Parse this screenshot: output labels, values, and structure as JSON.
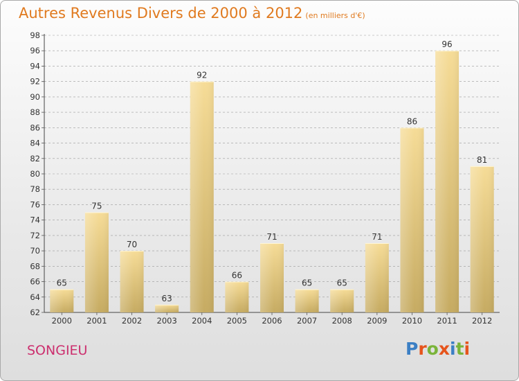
{
  "header": {
    "title": "Autres Revenus Divers de 2000 à 2012",
    "subtitle": "(en milliers d'€)"
  },
  "footer": {
    "commune": "SONGIEU",
    "logo": "Proxiti"
  },
  "colors": {
    "title": "#e07a1f",
    "commune": "#cc2f6e",
    "bar_light": "#f6dc97",
    "bar_dark": "#c6ab62",
    "grid": "#999999"
  },
  "logo_letter_colors": [
    "#3b7fc4",
    "#e6541c",
    "#7ab43a",
    "#e6541c",
    "#3b7fc4",
    "#7ab43a",
    "#e6541c"
  ],
  "chart_data": {
    "type": "bar",
    "title": "Autres Revenus Divers de 2000 à 2012",
    "subtitle": "(en milliers d'€)",
    "categories": [
      "2000",
      "2001",
      "2002",
      "2003",
      "2004",
      "2005",
      "2006",
      "2007",
      "2008",
      "2009",
      "2010",
      "2011",
      "2012"
    ],
    "values": [
      65,
      75,
      70,
      63,
      92,
      66,
      71,
      65,
      65,
      71,
      86,
      96,
      81
    ],
    "ylim": [
      62,
      98
    ],
    "yticks": [
      62,
      64,
      66,
      68,
      70,
      72,
      74,
      76,
      78,
      80,
      82,
      84,
      86,
      88,
      90,
      92,
      94,
      96,
      98
    ],
    "grid": "horizontal dashed",
    "legend": "none"
  }
}
